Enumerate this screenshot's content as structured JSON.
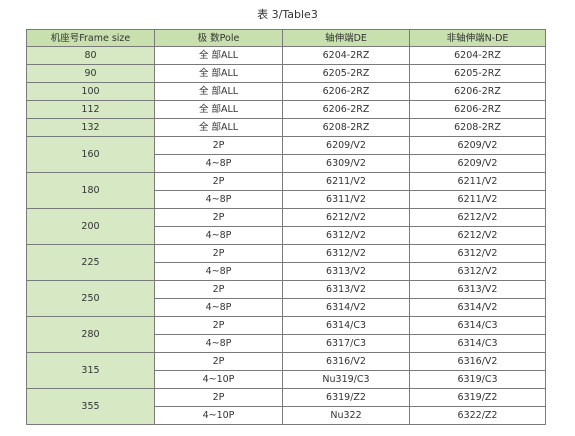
{
  "caption": "表 3/Table3",
  "headers": [
    "机座号Frame size",
    "极   数Pole",
    "轴伸端DE",
    "非轴伸端N-DE"
  ],
  "single_rows": [
    {
      "frame": "80",
      "pole": "全  部ALL",
      "de": "6204-2RZ",
      "nde": "6204-2RZ"
    },
    {
      "frame": "90",
      "pole": "全  部ALL",
      "de": "6205-2RZ",
      "nde": "6205-2RZ"
    },
    {
      "frame": "100",
      "pole": "全  部ALL",
      "de": "6206-2RZ",
      "nde": "6206-2RZ"
    },
    {
      "frame": "112",
      "pole": "全  部ALL",
      "de": "6206-2RZ",
      "nde": "6206-2RZ"
    },
    {
      "frame": "132",
      "pole": "全  部ALL",
      "de": "6208-2RZ",
      "nde": "6208-2RZ"
    }
  ],
  "grouped_rows": [
    {
      "frame": "160",
      "rows": [
        {
          "pole": "2P",
          "de": "6209/V2",
          "nde": "6209/V2"
        },
        {
          "pole": "4~8P",
          "de": "6309/V2",
          "nde": "6209/V2"
        }
      ]
    },
    {
      "frame": "180",
      "rows": [
        {
          "pole": "2P",
          "de": "6211/V2",
          "nde": "6211/V2"
        },
        {
          "pole": "4~8P",
          "de": "6311/V2",
          "nde": "6211/V2"
        }
      ]
    },
    {
      "frame": "200",
      "rows": [
        {
          "pole": "2P",
          "de": "6212/V2",
          "nde": "6212/V2"
        },
        {
          "pole": "4~8P",
          "de": "6312/V2",
          "nde": "6212/V2"
        }
      ]
    },
    {
      "frame": "225",
      "rows": [
        {
          "pole": "2P",
          "de": "6312/V2",
          "nde": "6312/V2"
        },
        {
          "pole": "4~8P",
          "de": "6313/V2",
          "nde": "6312/V2"
        }
      ]
    },
    {
      "frame": "250",
      "rows": [
        {
          "pole": "2P",
          "de": "6313/V2",
          "nde": "6313/V2"
        },
        {
          "pole": "4~8P",
          "de": "6314/V2",
          "nde": "6314/V2"
        }
      ]
    },
    {
      "frame": "280",
      "rows": [
        {
          "pole": "2P",
          "de": "6314/C3",
          "nde": "6314/C3"
        },
        {
          "pole": "4~8P",
          "de": "6317/C3",
          "nde": "6314/C3"
        }
      ]
    },
    {
      "frame": "315",
      "rows": [
        {
          "pole": "2P",
          "de": "6316/V2",
          "nde": "6316/V2"
        },
        {
          "pole": "4~10P",
          "de": "Nu319/C3",
          "nde": "6319/C3"
        }
      ]
    },
    {
      "frame": "355",
      "rows": [
        {
          "pole": "2P",
          "de": "6319/Z2",
          "nde": "6319/Z2"
        },
        {
          "pole": "4~10P",
          "de": "Nu322",
          "nde": "6322/Z2"
        }
      ]
    }
  ],
  "colors": {
    "header_bg": "#c8e0ae",
    "frame_cell_bg": "#d6e9c4",
    "border": "#7a7a7a",
    "text": "#333333"
  }
}
